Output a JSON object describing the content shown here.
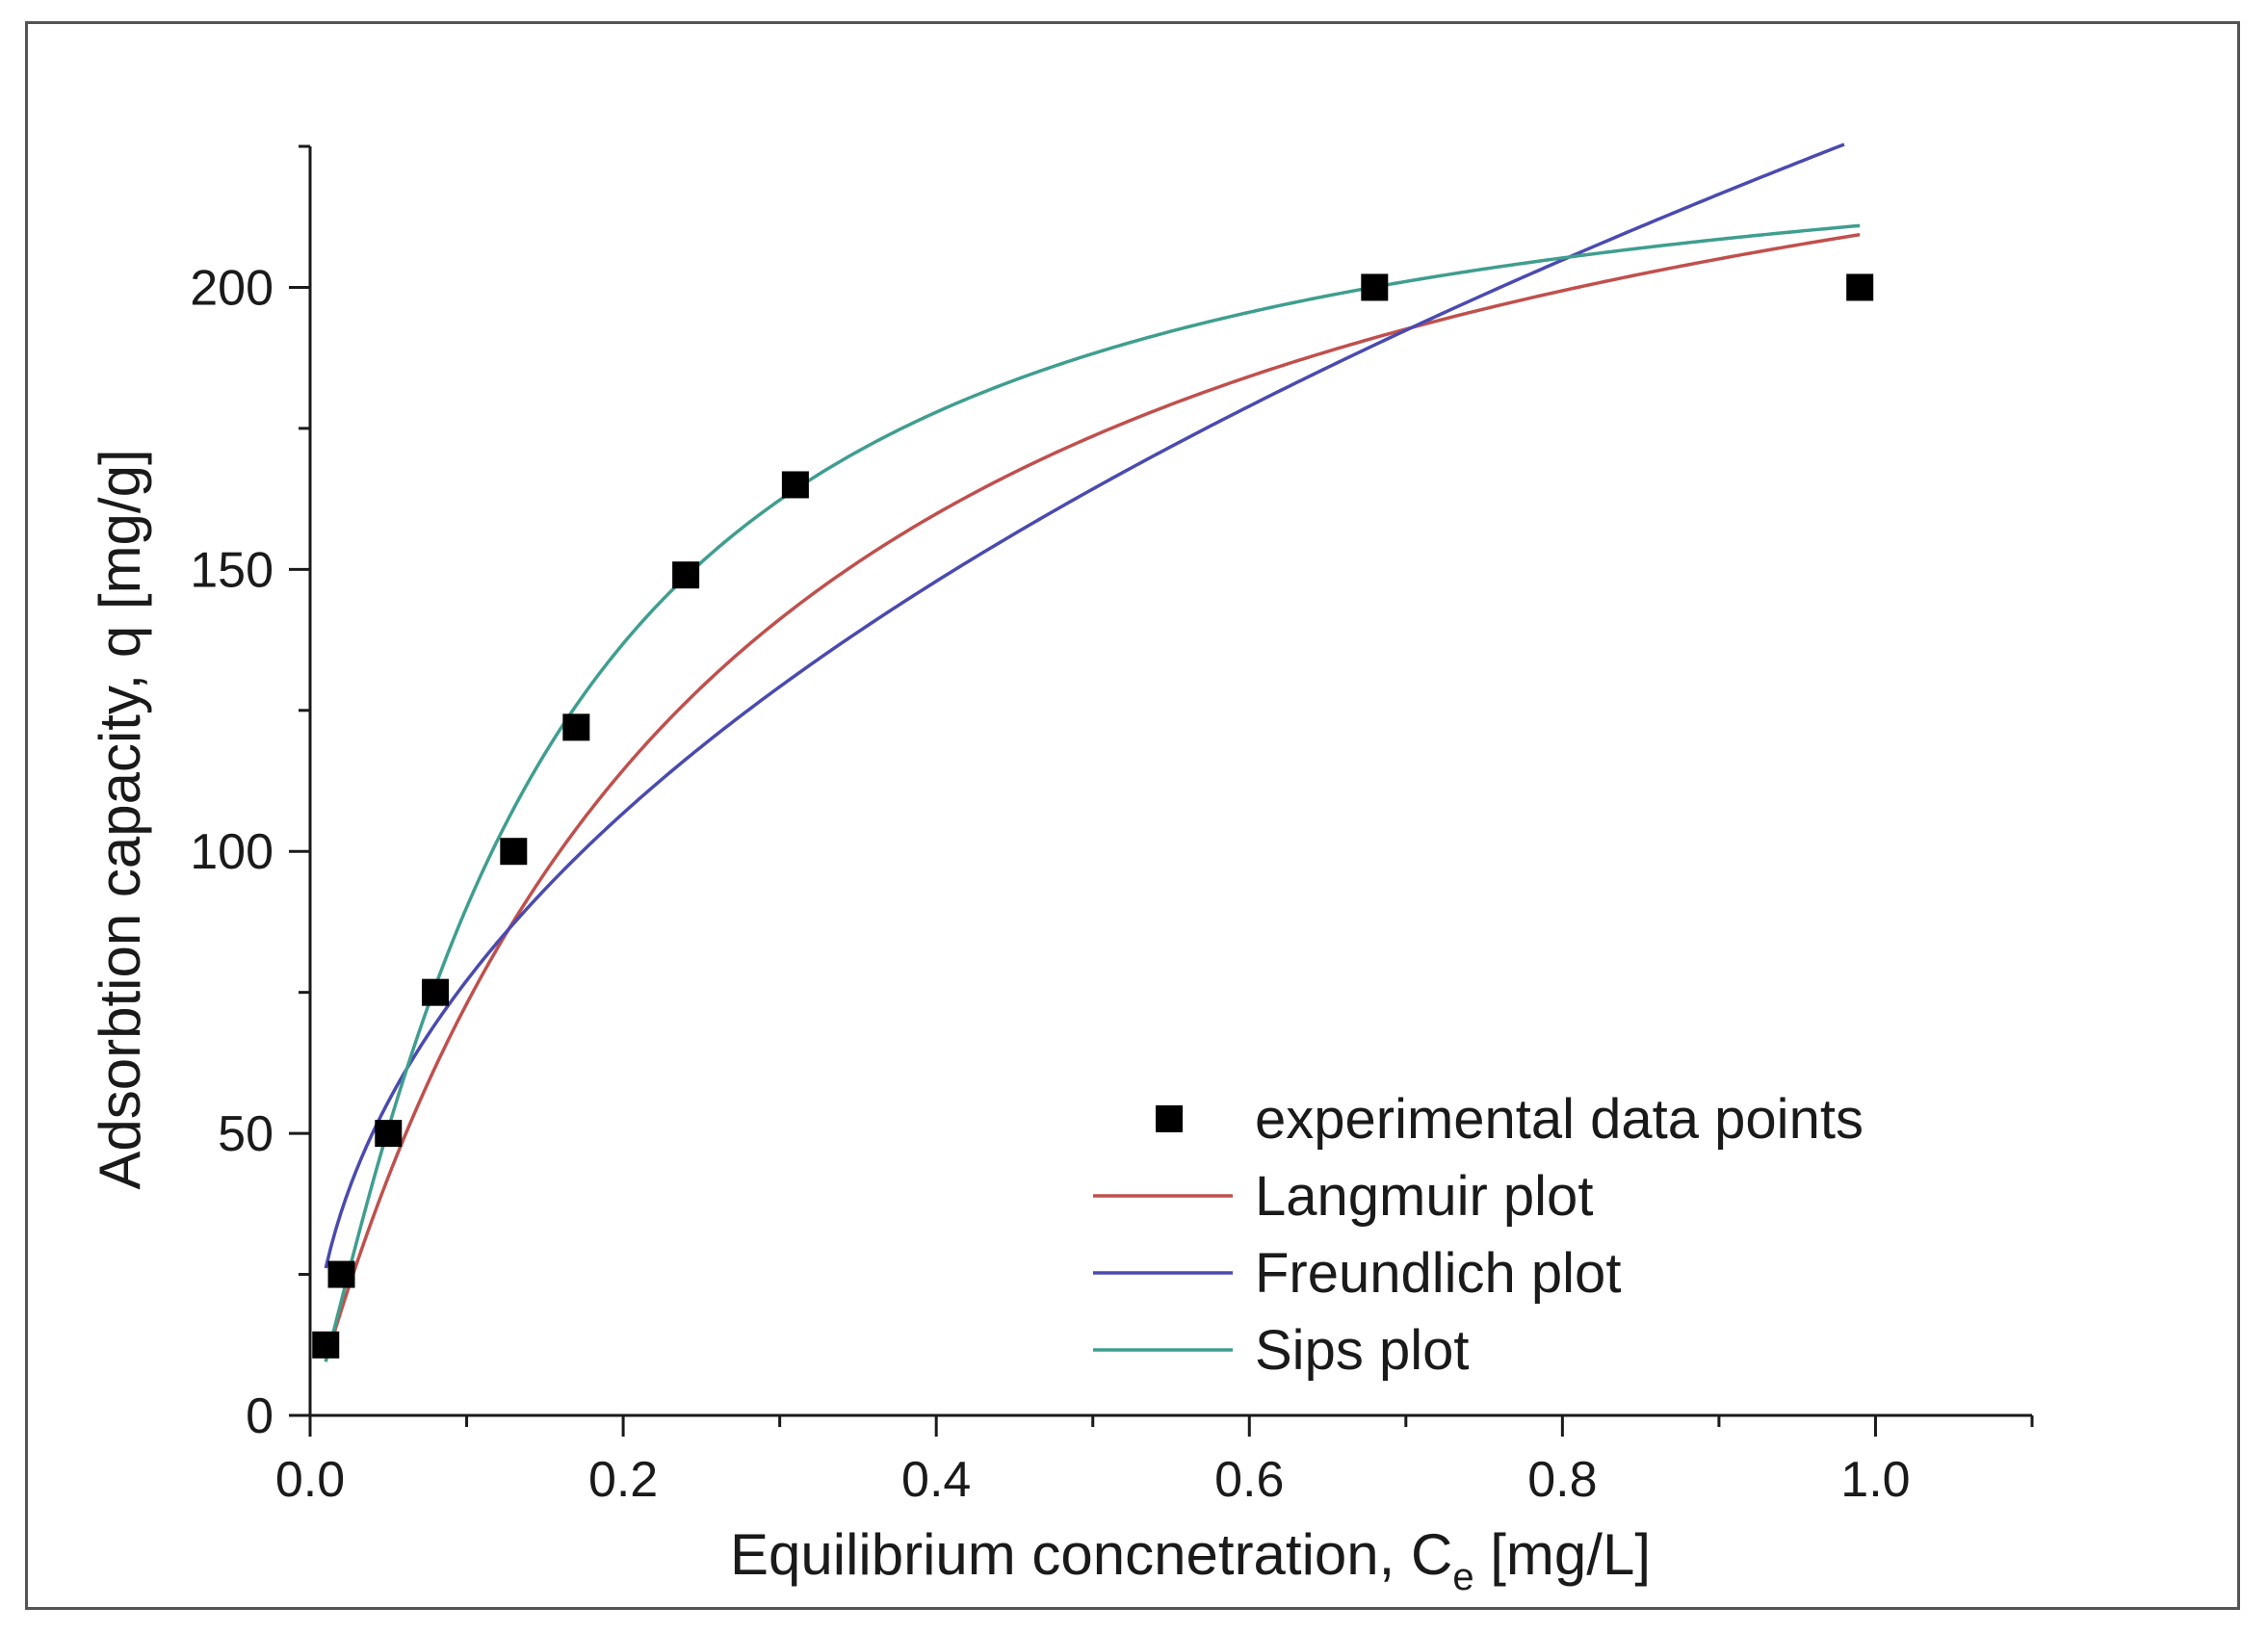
{
  "chart_data": {
    "type": "scatter",
    "title": "",
    "xlabel": "Equilibrium concnetration, C",
    "xlabel_sub": "e",
    "xlabel_unit": " [mg/L]",
    "ylabel": "Adsorbtion capacity, q [mg/g]",
    "xlim": [
      0.0,
      1.1
    ],
    "ylim": [
      0,
      225
    ],
    "x_ticks": [
      0.0,
      0.2,
      0.4,
      0.6,
      0.8,
      1.0
    ],
    "x_tick_labels": [
      "0.0",
      "0.2",
      "0.4",
      "0.6",
      "0.8",
      "1.0"
    ],
    "x_minor_ticks": [
      0.1,
      0.3,
      0.5,
      0.7,
      0.9,
      1.1
    ],
    "y_ticks": [
      0,
      50,
      100,
      150,
      200
    ],
    "y_tick_labels": [
      "0",
      "50",
      "100",
      "150",
      "200"
    ],
    "y_minor_ticks": [
      25,
      75,
      125,
      175,
      225
    ],
    "grid": false,
    "legend_position": "bottom-right",
    "series": [
      {
        "name": "experimental data points",
        "kind": "markers",
        "marker": "square",
        "color": "#000000",
        "x": [
          0.01,
          0.02,
          0.05,
          0.08,
          0.13,
          0.17,
          0.24,
          0.31,
          0.68,
          0.99
        ],
        "y": [
          12.5,
          25,
          50,
          75,
          100,
          122,
          149,
          165,
          200,
          200
        ]
      },
      {
        "name": "Langmuir plot",
        "kind": "line",
        "color": "#c0504d",
        "model": "langmuir",
        "params": {
          "qmax": 265,
          "K": 3.8
        },
        "x_range": [
          0.01,
          0.99
        ]
      },
      {
        "name": "Freundlich plot",
        "kind": "line",
        "color": "#4a4ab0",
        "model": "freundlich",
        "params": {
          "Kf": 227.5,
          "n": 0.47
        },
        "x_range": [
          0.01,
          0.98
        ]
      },
      {
        "name": "Sips plot",
        "kind": "line",
        "color": "#3f9e8f",
        "model": "sips",
        "params": {
          "qmax": 234,
          "K": 6.7,
          "n": 1.17
        },
        "x_range": [
          0.01,
          0.99
        ]
      }
    ]
  }
}
